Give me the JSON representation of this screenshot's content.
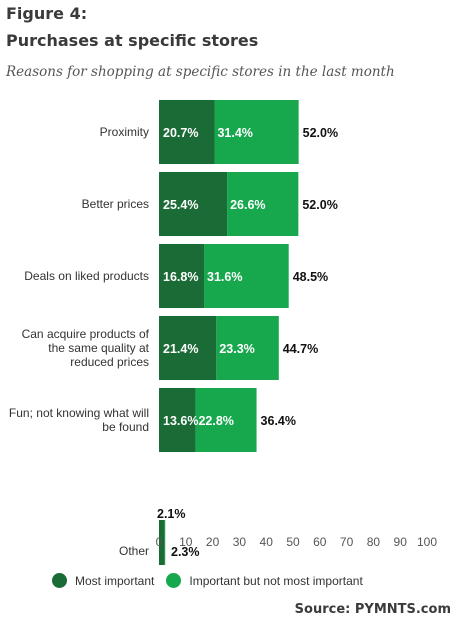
{
  "figure_label": "Figure 4:",
  "title": "Purchases at specific stores",
  "subtitle": "Reasons for shopping at specific stores in the last month",
  "source": "Source: PYMNTS.com",
  "colors": {
    "most": "#1b6b37",
    "important": "#17a84e"
  },
  "chart_data": {
    "type": "bar",
    "orientation": "horizontal",
    "stacked": true,
    "categories": [
      "Proximity",
      "Better prices",
      "Deals on liked products",
      "Can acquire products of the same quality at reduced prices",
      "Fun; not knowing what will be found",
      "Other"
    ],
    "series": [
      {
        "name": "Most important",
        "values": [
          20.7,
          25.4,
          16.8,
          21.4,
          13.6,
          2.1
        ]
      },
      {
        "name": "Important but not most important",
        "values": [
          31.4,
          26.6,
          31.6,
          23.3,
          22.8,
          0.2
        ]
      }
    ],
    "totals": [
      52.0,
      52.0,
      48.5,
      44.7,
      36.4,
      2.3
    ],
    "xlim": [
      0,
      100
    ],
    "xticks": [
      0,
      10,
      20,
      30,
      40,
      50,
      60,
      70,
      80,
      90,
      100
    ],
    "legend_position": "bottom"
  }
}
